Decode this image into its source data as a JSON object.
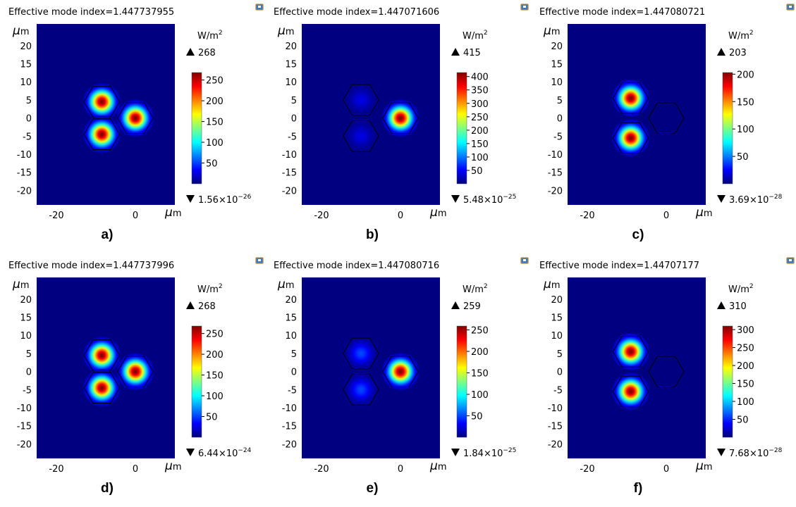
{
  "chart_data": [
    {
      "type": "heatmap",
      "caption": "a)",
      "title": "Effective mode index=1.447737955",
      "axis_unit": "μm",
      "field_unit": "W/m2",
      "max_label": "268",
      "min_label": "1.56×10",
      "min_exp": "−26",
      "x_ticks": [
        "-20",
        "0"
      ],
      "y_ticks": [
        "20",
        "15",
        "10",
        "5",
        "0",
        "-5",
        "-10",
        "-15",
        "-20"
      ],
      "xlim": [
        -25,
        10
      ],
      "ylim": [
        -24,
        26
      ],
      "colorbar_ticks": [
        250,
        200,
        150,
        100,
        50
      ],
      "colorbar_max": 268,
      "cores": [
        {
          "x": -8.5,
          "y": 4.5,
          "peak": 268
        },
        {
          "x": -8.5,
          "y": -4.5,
          "peak": 268
        },
        {
          "x": 0,
          "y": 0,
          "peak": 268
        }
      ]
    },
    {
      "type": "heatmap",
      "caption": "b)",
      "title": "Effective mode index=1.447071606",
      "axis_unit": "μm",
      "field_unit": "W/m2",
      "max_label": "415",
      "min_label": "5.48×10",
      "min_exp": "−25",
      "x_ticks": [
        "-20",
        "0"
      ],
      "y_ticks": [
        "20",
        "15",
        "10",
        "5",
        "0",
        "-5",
        "-10",
        "-15",
        "-20"
      ],
      "xlim": [
        -25,
        10
      ],
      "ylim": [
        -24,
        26
      ],
      "colorbar_ticks": [
        400,
        350,
        300,
        250,
        200,
        150,
        100,
        50
      ],
      "colorbar_max": 415,
      "cores": [
        {
          "x": -10,
          "y": 5,
          "peak": 40
        },
        {
          "x": -10,
          "y": -5,
          "peak": 40
        },
        {
          "x": 0,
          "y": 0,
          "peak": 415
        }
      ]
    },
    {
      "type": "heatmap",
      "caption": "c)",
      "title": "Effective mode index=1.447080721",
      "axis_unit": "μm",
      "field_unit": "W/m2",
      "max_label": "203",
      "min_label": "3.69×10",
      "min_exp": "−28",
      "x_ticks": [
        "-20",
        "0"
      ],
      "y_ticks": [
        "20",
        "15",
        "10",
        "5",
        "0",
        "-5",
        "-10",
        "-15",
        "-20"
      ],
      "xlim": [
        -25,
        10
      ],
      "ylim": [
        -24,
        26
      ],
      "colorbar_ticks": [
        200,
        150,
        100,
        50
      ],
      "colorbar_max": 203,
      "cores": [
        {
          "x": -9,
          "y": 5.5,
          "peak": 203
        },
        {
          "x": -9,
          "y": -5.5,
          "peak": 203
        },
        {
          "x": 0,
          "y": 0,
          "peak": 0
        }
      ]
    },
    {
      "type": "heatmap",
      "caption": "d)",
      "title": "Effective mode index=1.447737996",
      "axis_unit": "μm",
      "field_unit": "W/m2",
      "max_label": "268",
      "min_label": "6.44×10",
      "min_exp": "−24",
      "x_ticks": [
        "-20",
        "0"
      ],
      "y_ticks": [
        "20",
        "15",
        "10",
        "5",
        "0",
        "-5",
        "-10",
        "-15",
        "-20"
      ],
      "xlim": [
        -25,
        10
      ],
      "ylim": [
        -24,
        26
      ],
      "colorbar_ticks": [
        250,
        200,
        150,
        100,
        50
      ],
      "colorbar_max": 268,
      "cores": [
        {
          "x": -8.5,
          "y": 4.5,
          "peak": 268
        },
        {
          "x": -8.5,
          "y": -4.5,
          "peak": 268
        },
        {
          "x": 0,
          "y": 0,
          "peak": 268
        }
      ]
    },
    {
      "type": "heatmap",
      "caption": "e)",
      "title": "Effective mode index=1.447080716",
      "axis_unit": "μm",
      "field_unit": "W/m2",
      "max_label": "259",
      "min_label": "1.84×10",
      "min_exp": "−25",
      "x_ticks": [
        "-20",
        "0"
      ],
      "y_ticks": [
        "20",
        "15",
        "10",
        "5",
        "0",
        "-5",
        "-10",
        "-15",
        "-20"
      ],
      "xlim": [
        -25,
        10
      ],
      "ylim": [
        -24,
        26
      ],
      "colorbar_ticks": [
        250,
        200,
        150,
        100,
        50
      ],
      "colorbar_max": 259,
      "cores": [
        {
          "x": -10,
          "y": 5,
          "peak": 50
        },
        {
          "x": -10,
          "y": -5,
          "peak": 50
        },
        {
          "x": 0,
          "y": 0,
          "peak": 259
        }
      ]
    },
    {
      "type": "heatmap",
      "caption": "f)",
      "title": "Effective mode index=1.44707177",
      "axis_unit": "μm",
      "field_unit": "W/m2",
      "max_label": "310",
      "min_label": "7.68×10",
      "min_exp": "−28",
      "x_ticks": [
        "-20",
        "0"
      ],
      "y_ticks": [
        "20",
        "15",
        "10",
        "5",
        "0",
        "-5",
        "-10",
        "-15",
        "-20"
      ],
      "xlim": [
        -25,
        10
      ],
      "ylim": [
        -24,
        26
      ],
      "colorbar_ticks": [
        300,
        250,
        200,
        150,
        100,
        50
      ],
      "colorbar_max": 310,
      "cores": [
        {
          "x": -9,
          "y": 5.5,
          "peak": 310
        },
        {
          "x": -9,
          "y": -5.5,
          "peak": 310
        },
        {
          "x": 0,
          "y": 0,
          "peak": 0
        }
      ]
    }
  ],
  "colors": {
    "background": "#ffffff",
    "text": "#000000",
    "core_outline": "#000000"
  },
  "icon": "comsol-window-icon"
}
